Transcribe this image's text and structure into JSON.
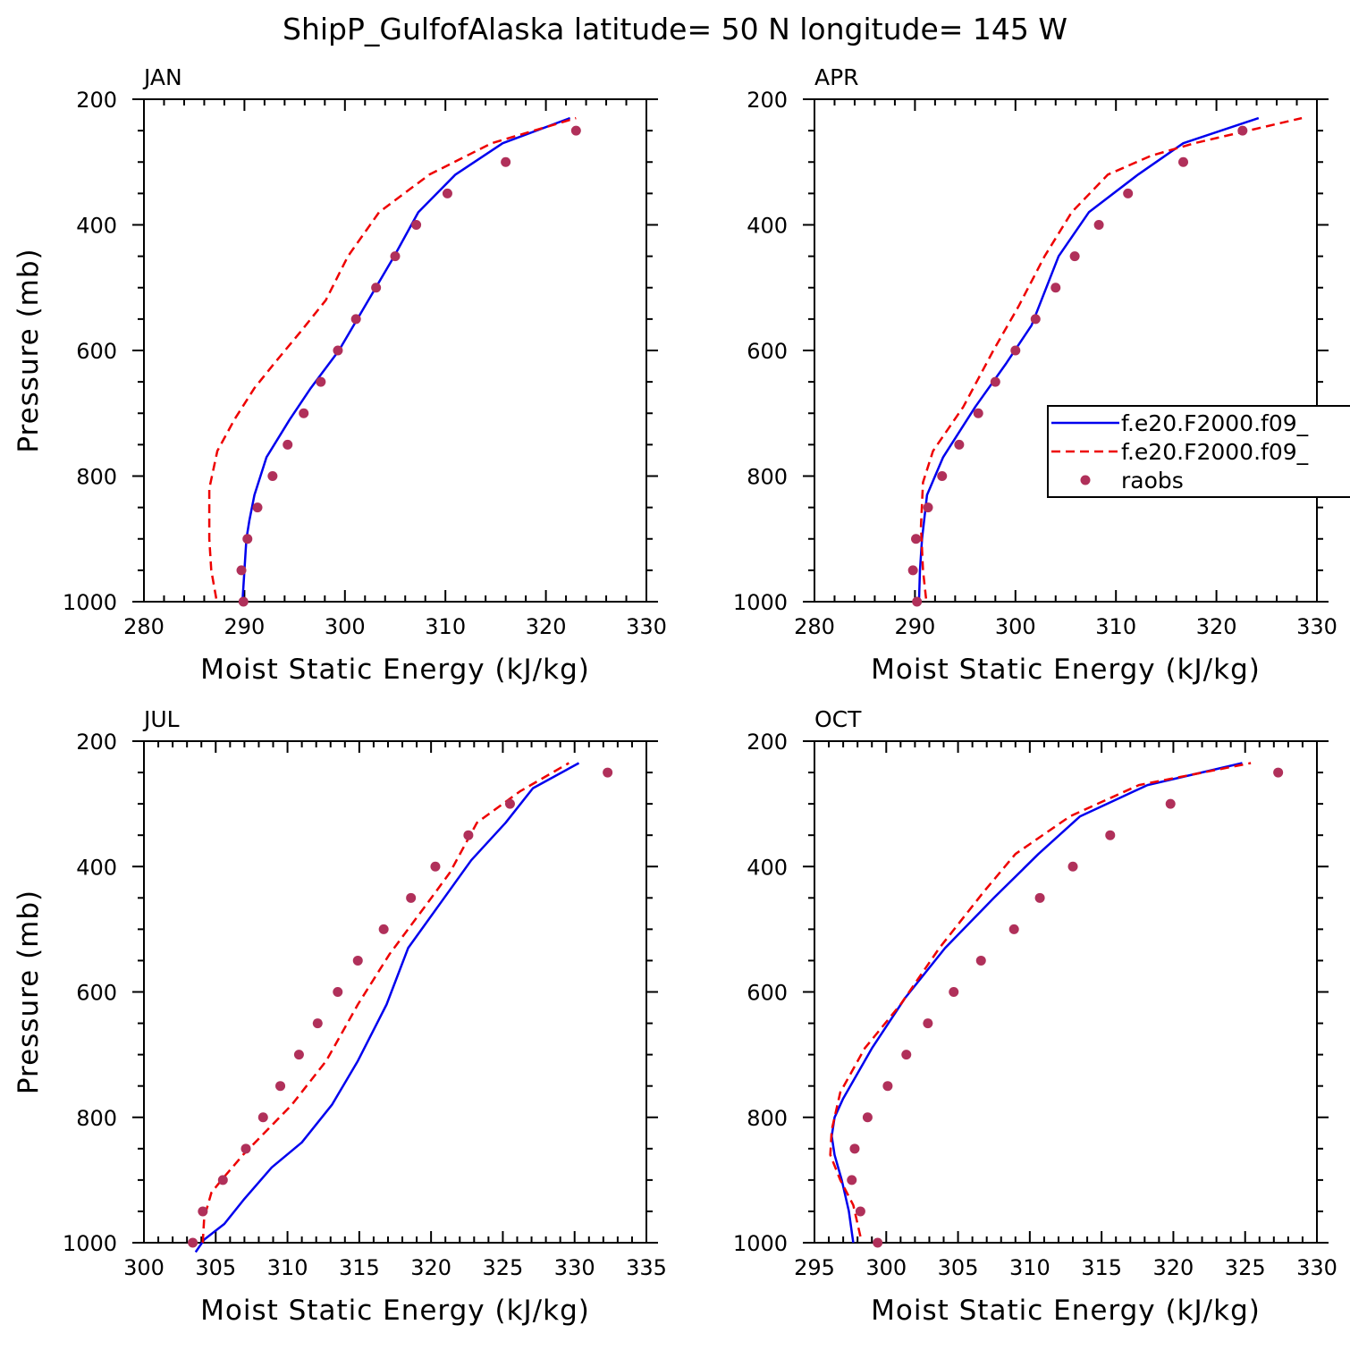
{
  "title": "ShipP_GulfofAlaska  latitude= 50 N longitude= 145 W",
  "legend": {
    "series": [
      "f.e20.F2000.f09_",
      "f.e20.F2000.f09_",
      "raobs"
    ]
  },
  "colors": {
    "model_a": "#0000ee",
    "model_b": "#ee0000",
    "raobs": "#b0305a"
  },
  "chart_data": [
    {
      "type": "line",
      "panel": "JAN",
      "xlabel": "Moist Static Energy (kJ/kg)",
      "ylabel": "Pressure (mb)",
      "xlim": [
        280,
        330
      ],
      "ylim": [
        1000,
        200
      ],
      "x_ticks": [
        280,
        290,
        300,
        310,
        320,
        330
      ],
      "y_ticks": [
        200,
        400,
        600,
        800,
        1000
      ],
      "series": [
        {
          "name": "f.e20.F2000.f09_",
          "style": "solid",
          "x": [
            289.8,
            290.0,
            290.2,
            290.5,
            291.0,
            292.2,
            294.5,
            296.6,
            299.4,
            301.6,
            304.9,
            307.3,
            311.0,
            315.7,
            322.4
          ],
          "y": [
            1000,
            950,
            900,
            870,
            830,
            770,
            710,
            660,
            600,
            540,
            450,
            380,
            320,
            270,
            230
          ]
        },
        {
          "name": "f.e20.F2000.f09_",
          "style": "dashed",
          "x": [
            287.2,
            286.7,
            286.5,
            286.5,
            287.3,
            289.0,
            291.0,
            293.0,
            295.6,
            298.1,
            300.3,
            303.4,
            308.4,
            314.6,
            323.0
          ],
          "y": [
            995,
            950,
            900,
            820,
            760,
            710,
            660,
            620,
            570,
            520,
            450,
            380,
            320,
            270,
            230
          ]
        },
        {
          "name": "raobs",
          "style": "points",
          "x": [
            289.9,
            289.7,
            290.3,
            291.3,
            292.8,
            294.3,
            295.9,
            297.6,
            299.3,
            301.1,
            303.1,
            305.0,
            307.1,
            310.2,
            316.0,
            323.0
          ],
          "y": [
            1000,
            950,
            900,
            850,
            800,
            750,
            700,
            650,
            600,
            550,
            500,
            450,
            400,
            350,
            300,
            250
          ]
        }
      ]
    },
    {
      "type": "line",
      "panel": "APR",
      "xlabel": "Moist Static Energy (kJ/kg)",
      "ylabel": "Pressure (mb)",
      "xlim": [
        280,
        330
      ],
      "ylim": [
        1000,
        200
      ],
      "x_ticks": [
        280,
        290,
        300,
        310,
        320,
        330
      ],
      "y_ticks": [
        200,
        400,
        600,
        800,
        1000
      ],
      "series": [
        {
          "name": "f.e20.F2000.f09_",
          "style": "solid",
          "x": [
            290.4,
            290.5,
            290.7,
            291.2,
            292.8,
            296.0,
            299.1,
            301.6,
            304.3,
            307.3,
            312.2,
            316.7,
            324.2
          ],
          "y": [
            1000,
            950,
            900,
            830,
            770,
            690,
            620,
            560,
            450,
            380,
            320,
            270,
            230
          ]
        },
        {
          "name": "f.e20.F2000.f09_",
          "style": "dashed",
          "x": [
            291.1,
            290.8,
            290.6,
            290.8,
            291.8,
            294.8,
            297.8,
            300.3,
            302.9,
            305.6,
            309.2,
            313.5,
            317.8,
            328.5
          ],
          "y": [
            995,
            950,
            880,
            810,
            760,
            690,
            600,
            530,
            450,
            380,
            320,
            290,
            270,
            230
          ]
        },
        {
          "name": "raobs",
          "style": "points",
          "x": [
            290.2,
            289.8,
            290.1,
            291.3,
            292.7,
            294.4,
            296.3,
            298.0,
            300.0,
            302.0,
            304.0,
            305.9,
            308.3,
            311.2,
            316.7,
            322.6
          ],
          "y": [
            1000,
            950,
            900,
            850,
            800,
            750,
            700,
            650,
            600,
            550,
            500,
            450,
            400,
            350,
            300,
            250
          ]
        }
      ]
    },
    {
      "type": "line",
      "panel": "JUL",
      "xlabel": "Moist Static Energy (kJ/kg)",
      "ylabel": "Pressure (mb)",
      "xlim": [
        300,
        335
      ],
      "ylim": [
        1000,
        200
      ],
      "x_ticks": [
        300,
        305,
        310,
        315,
        320,
        325,
        330,
        335
      ],
      "y_ticks": [
        200,
        400,
        600,
        800,
        1000
      ],
      "series": [
        {
          "name": "f.e20.F2000.f09_",
          "style": "solid",
          "x": [
            303.6,
            304.2,
            305.6,
            307.0,
            308.9,
            311.0,
            313.1,
            314.9,
            316.9,
            318.4,
            320.6,
            322.8,
            325.2,
            327.1,
            330.3
          ],
          "y": [
            1015,
            995,
            970,
            930,
            880,
            840,
            780,
            710,
            620,
            530,
            460,
            390,
            330,
            275,
            235
          ]
        },
        {
          "name": "f.e20.F2000.f09_",
          "style": "dashed",
          "x": [
            304.1,
            304.2,
            304.7,
            305.4,
            306.9,
            310.3,
            312.7,
            314.9,
            317.1,
            319.7,
            321.3,
            323.2,
            326.2,
            329.6
          ],
          "y": [
            1000,
            960,
            920,
            900,
            860,
            780,
            710,
            620,
            540,
            460,
            410,
            330,
            280,
            235
          ]
        },
        {
          "name": "raobs",
          "style": "points",
          "x": [
            303.4,
            304.1,
            305.5,
            307.1,
            308.3,
            309.5,
            310.8,
            312.1,
            313.5,
            314.9,
            316.7,
            318.6,
            320.3,
            322.6,
            325.5,
            332.3
          ],
          "y": [
            1000,
            950,
            900,
            850,
            800,
            750,
            700,
            650,
            600,
            550,
            500,
            450,
            400,
            350,
            300,
            250
          ]
        }
      ]
    },
    {
      "type": "line",
      "panel": "OCT",
      "xlabel": "Moist Static Energy (kJ/kg)",
      "ylabel": "Pressure (mb)",
      "xlim": [
        295,
        330
      ],
      "ylim": [
        1000,
        200
      ],
      "x_ticks": [
        295,
        300,
        305,
        310,
        315,
        320,
        325,
        330
      ],
      "y_ticks": [
        200,
        400,
        600,
        800,
        1000
      ],
      "series": [
        {
          "name": "f.e20.F2000.f09_",
          "style": "solid",
          "x": [
            297.7,
            297.4,
            296.9,
            296.4,
            296.2,
            296.4,
            297.0,
            299.0,
            301.3,
            304.1,
            307.5,
            310.6,
            313.5,
            318.2,
            324.8
          ],
          "y": [
            1000,
            950,
            900,
            860,
            830,
            800,
            770,
            690,
            610,
            530,
            450,
            380,
            320,
            270,
            235
          ]
        },
        {
          "name": "f.e20.F2000.f09_",
          "style": "dashed",
          "x": [
            298.2,
            297.7,
            296.8,
            296.1,
            296.2,
            296.8,
            298.5,
            301.0,
            303.7,
            306.8,
            309.0,
            312.8,
            317.6,
            325.4
          ],
          "y": [
            990,
            940,
            900,
            860,
            820,
            760,
            690,
            620,
            530,
            440,
            380,
            320,
            270,
            235
          ]
        },
        {
          "name": "raobs",
          "style": "points",
          "x": [
            299.4,
            298.2,
            297.6,
            297.8,
            298.7,
            300.1,
            301.4,
            302.9,
            304.7,
            306.6,
            308.9,
            310.7,
            313.0,
            315.6,
            319.8,
            327.3
          ],
          "y": [
            1000,
            950,
            900,
            850,
            800,
            750,
            700,
            650,
            600,
            550,
            500,
            450,
            400,
            350,
            300,
            250
          ]
        }
      ]
    }
  ]
}
